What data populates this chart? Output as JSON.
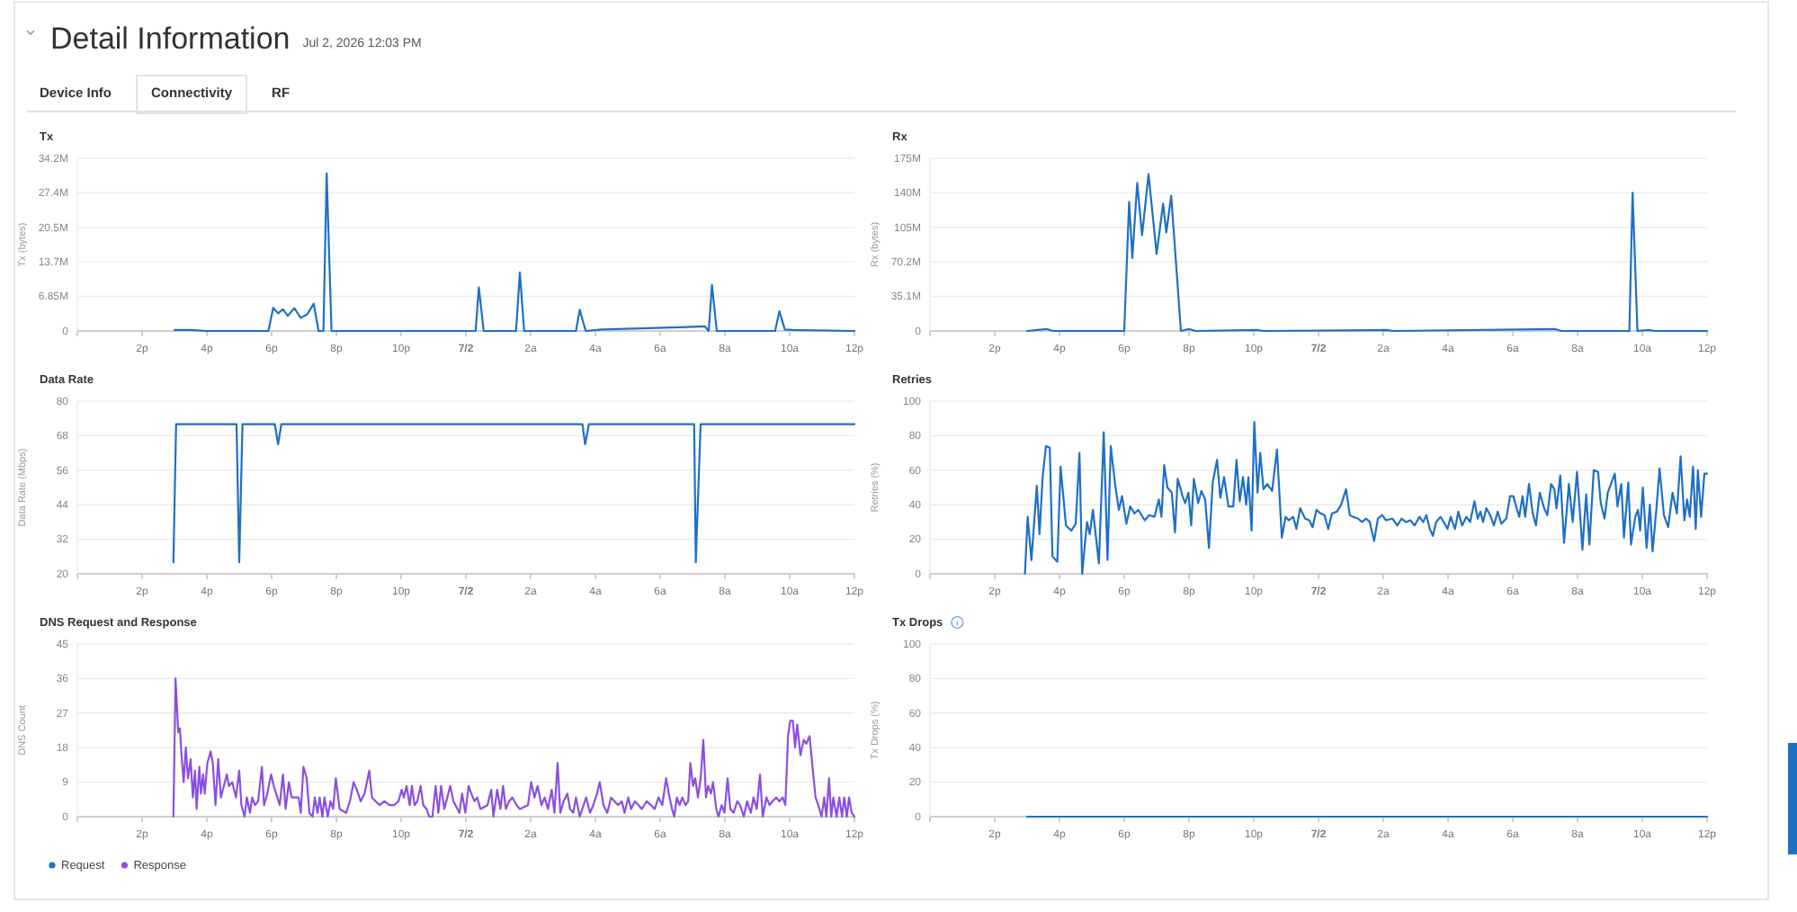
{
  "chart_data": [
    {
      "type": "other",
      "title": "Detail Information",
      "subtitle": "Jul 2, 2026 12:03 PM",
      "annotations": [
        "Device Info",
        "Connectivity",
        "RF"
      ]
    },
    {
      "type": "line",
      "title": "Tx",
      "ylabel": "Tx (bytes)",
      "grid": "y",
      "xlim": [
        "2026-07-01T12:00",
        "2026-07-02T12:00"
      ],
      "ylim": [
        0,
        34.2
      ],
      "xticks": [
        {
          "value": "2026-07-01T14:00",
          "label": "2p"
        },
        {
          "value": "2026-07-01T16:00",
          "label": "4p"
        },
        {
          "value": "2026-07-01T18:00",
          "label": "6p"
        },
        {
          "value": "2026-07-01T20:00",
          "label": "8p"
        },
        {
          "value": "2026-07-01T22:00",
          "label": "10p"
        },
        {
          "value": "2026-07-02T00:00",
          "label": "7/2"
        },
        {
          "value": "2026-07-02T02:00",
          "label": "2a"
        },
        {
          "value": "2026-07-02T04:00",
          "label": "4a"
        },
        {
          "value": "2026-07-02T06:00",
          "label": "6a"
        },
        {
          "value": "2026-07-02T08:00",
          "label": "8a"
        },
        {
          "value": "2026-07-02T10:00",
          "label": "10a"
        },
        {
          "value": "2026-07-02T12:00",
          "label": "12p"
        }
      ],
      "yticks": [
        0,
        {
          "value": 6.85,
          "label": "6.85M"
        },
        {
          "value": 13.7,
          "label": "13.7M"
        },
        {
          "value": 20.5,
          "label": "20.5M"
        },
        {
          "value": 27.4,
          "label": "27.4M"
        },
        {
          "value": 34.2,
          "label": "34.2M"
        }
      ],
      "series": [
        {
          "color": "#1f6fc5",
          "x": [
            "2026-07-01T15:00",
            "2026-07-01T15:30",
            "2026-07-01T16:00",
            "2026-07-01T17:54",
            "2026-07-01T18:03",
            "2026-07-01T18:12",
            "2026-07-01T18:21",
            "2026-07-01T18:30",
            "2026-07-01T18:42",
            "2026-07-01T18:54",
            "2026-07-01T19:06",
            "2026-07-01T19:18",
            "2026-07-01T19:27",
            "2026-07-01T19:36",
            "2026-07-01T19:42",
            "2026-07-01T19:51",
            "2026-07-02T00:18",
            "2026-07-02T00:24",
            "2026-07-02T00:33",
            "2026-07-02T01:33",
            "2026-07-02T01:40",
            "2026-07-02T01:48",
            "2026-07-02T03:24",
            "2026-07-02T03:31",
            "2026-07-02T03:42",
            "2026-07-02T04:11",
            "2026-07-02T07:23",
            "2026-07-02T07:30",
            "2026-07-02T07:36",
            "2026-07-02T07:45",
            "2026-07-02T09:33",
            "2026-07-02T09:41",
            "2026-07-02T09:51",
            "2026-07-02T10:06",
            "2026-07-02T12:00"
          ],
          "values": [
            0.2,
            0.2,
            0,
            0,
            4.6,
            3.5,
            4.3,
            3,
            4.5,
            2.6,
            3.3,
            5.4,
            0,
            0,
            31.2,
            0,
            0,
            8.6,
            0,
            0,
            11.6,
            0,
            0,
            4.2,
            0,
            0.3,
            0.9,
            0,
            9.1,
            0,
            0,
            3.9,
            0.3,
            0.2,
            0
          ]
        }
      ]
    },
    {
      "type": "line",
      "title": "Rx",
      "ylabel": "Rx (bytes)",
      "grid": "y",
      "xlim": [
        "2026-07-01T12:00",
        "2026-07-02T12:00"
      ],
      "ylim": [
        0,
        175
      ],
      "xticks": [
        {
          "value": "2026-07-01T14:00",
          "label": "2p"
        },
        {
          "value": "2026-07-01T16:00",
          "label": "4p"
        },
        {
          "value": "2026-07-01T18:00",
          "label": "6p"
        },
        {
          "value": "2026-07-01T20:00",
          "label": "8p"
        },
        {
          "value": "2026-07-01T22:00",
          "label": "10p"
        },
        {
          "value": "2026-07-02T00:00",
          "label": "7/2"
        },
        {
          "value": "2026-07-02T02:00",
          "label": "2a"
        },
        {
          "value": "2026-07-02T04:00",
          "label": "4a"
        },
        {
          "value": "2026-07-02T06:00",
          "label": "6a"
        },
        {
          "value": "2026-07-02T08:00",
          "label": "8a"
        },
        {
          "value": "2026-07-02T10:00",
          "label": "10a"
        },
        {
          "value": "2026-07-02T12:00",
          "label": "12p"
        }
      ],
      "yticks": [
        0,
        {
          "value": 35.1,
          "label": "35.1M"
        },
        {
          "value": 70.2,
          "label": "70.2M"
        },
        {
          "value": 105,
          "label": "105M"
        },
        {
          "value": 140,
          "label": "140M"
        },
        {
          "value": 175,
          "label": "175M"
        }
      ],
      "series": [
        {
          "color": "#1f6fc5",
          "x": [
            "2026-07-01T15:00",
            "2026-07-01T15:36",
            "2026-07-01T15:48",
            "2026-07-01T18:00",
            "2026-07-01T18:09",
            "2026-07-01T18:15",
            "2026-07-01T18:24",
            "2026-07-01T18:33",
            "2026-07-01T18:45",
            "2026-07-01T19:00",
            "2026-07-01T19:12",
            "2026-07-01T19:18",
            "2026-07-01T19:27",
            "2026-07-01T19:45",
            "2026-07-01T20:00",
            "2026-07-01T20:12",
            "2026-07-01T22:06",
            "2026-07-01T22:18",
            "2026-07-02T02:06",
            "2026-07-02T02:18",
            "2026-07-02T07:18",
            "2026-07-02T07:30",
            "2026-07-02T09:36",
            "2026-07-02T09:42",
            "2026-07-02T09:51",
            "2026-07-02T10:12",
            "2026-07-02T10:24",
            "2026-07-02T12:00"
          ],
          "values": [
            0,
            2,
            0,
            0,
            131,
            74,
            150,
            97,
            159,
            78,
            129,
            100,
            137,
            0,
            2,
            0,
            1,
            0,
            1,
            0,
            2,
            0,
            0,
            140,
            0,
            1,
            0,
            0
          ]
        }
      ]
    },
    {
      "type": "line",
      "title": "Data Rate",
      "ylabel": "Data Rate (Mbps)",
      "grid": "y",
      "xlim": [
        "2026-07-01T12:00",
        "2026-07-02T12:00"
      ],
      "ylim": [
        20,
        80
      ],
      "xticks": [
        {
          "value": "2026-07-01T14:00",
          "label": "2p"
        },
        {
          "value": "2026-07-01T16:00",
          "label": "4p"
        },
        {
          "value": "2026-07-01T18:00",
          "label": "6p"
        },
        {
          "value": "2026-07-01T20:00",
          "label": "8p"
        },
        {
          "value": "2026-07-01T22:00",
          "label": "10p"
        },
        {
          "value": "2026-07-02T00:00",
          "label": "7/2"
        },
        {
          "value": "2026-07-02T02:00",
          "label": "2a"
        },
        {
          "value": "2026-07-02T04:00",
          "label": "4a"
        },
        {
          "value": "2026-07-02T06:00",
          "label": "6a"
        },
        {
          "value": "2026-07-02T08:00",
          "label": "8a"
        },
        {
          "value": "2026-07-02T10:00",
          "label": "10a"
        },
        {
          "value": "2026-07-02T12:00",
          "label": "12p"
        }
      ],
      "yticks": [
        20,
        32,
        44,
        56,
        68,
        80
      ],
      "series": [
        {
          "color": "#1f6fc5",
          "x": [
            "2026-07-01T14:58",
            "2026-07-01T15:03",
            "2026-07-01T16:55",
            "2026-07-01T17:00",
            "2026-07-01T17:06",
            "2026-07-01T18:06",
            "2026-07-01T18:12",
            "2026-07-01T18:18",
            "2026-07-02T03:36",
            "2026-07-02T03:41",
            "2026-07-02T03:48",
            "2026-07-02T07:03",
            "2026-07-02T07:06",
            "2026-07-02T07:15",
            "2026-07-02T12:00"
          ],
          "values": [
            24,
            72,
            72,
            24,
            72,
            72,
            65,
            72,
            72,
            65,
            72,
            72,
            24,
            72,
            72
          ]
        }
      ]
    },
    {
      "type": "line",
      "title": "Retries",
      "ylabel": "Retries (%)",
      "grid": "y",
      "xlim": [
        "2026-07-01T12:00",
        "2026-07-02T12:00"
      ],
      "ylim": [
        0,
        100
      ],
      "xticks": [
        {
          "value": "2026-07-01T14:00",
          "label": "2p"
        },
        {
          "value": "2026-07-01T16:00",
          "label": "4p"
        },
        {
          "value": "2026-07-01T18:00",
          "label": "6p"
        },
        {
          "value": "2026-07-01T20:00",
          "label": "8p"
        },
        {
          "value": "2026-07-01T22:00",
          "label": "10p"
        },
        {
          "value": "2026-07-02T00:00",
          "label": "7/2"
        },
        {
          "value": "2026-07-02T02:00",
          "label": "2a"
        },
        {
          "value": "2026-07-02T04:00",
          "label": "4a"
        },
        {
          "value": "2026-07-02T06:00",
          "label": "6a"
        },
        {
          "value": "2026-07-02T08:00",
          "label": "8a"
        },
        {
          "value": "2026-07-02T10:00",
          "label": "10a"
        },
        {
          "value": "2026-07-02T12:00",
          "label": "12p"
        }
      ],
      "yticks": [
        0,
        20,
        40,
        60,
        80,
        100
      ],
      "series": [
        {
          "color": "#1f6fc5",
          "x": [
            "2026-07-01T14:56",
            "2026-07-01T15:01",
            "2026-07-01T15:08",
            "2026-07-01T15:18",
            "2026-07-01T15:23",
            "2026-07-01T15:29",
            "2026-07-01T15:35",
            "2026-07-01T15:42",
            "2026-07-01T15:47",
            "2026-07-01T15:56",
            "2026-07-01T16:02",
            "2026-07-01T16:12",
            "2026-07-01T16:22",
            "2026-07-01T16:30",
            "2026-07-01T16:37",
            "2026-07-01T16:42",
            "2026-07-01T16:51",
            "2026-07-01T16:56",
            "2026-07-01T17:02",
            "2026-07-01T17:13",
            "2026-07-01T17:22",
            "2026-07-01T17:29",
            "2026-07-01T17:35",
            "2026-07-01T17:43",
            "2026-07-01T17:50",
            "2026-07-01T17:56",
            "2026-07-01T18:04",
            "2026-07-01T18:11",
            "2026-07-01T18:19",
            "2026-07-01T18:26",
            "2026-07-01T18:38",
            "2026-07-01T18:46",
            "2026-07-01T18:56",
            "2026-07-01T19:04",
            "2026-07-01T19:09",
            "2026-07-01T19:14",
            "2026-07-01T19:20",
            "2026-07-01T19:28",
            "2026-07-01T19:34",
            "2026-07-01T19:39",
            "2026-07-01T19:48",
            "2026-07-01T19:53",
            "2026-07-01T19:59",
            "2026-07-01T20:04",
            "2026-07-01T20:09",
            "2026-07-01T20:17",
            "2026-07-01T20:23",
            "2026-07-01T20:30",
            "2026-07-01T20:37",
            "2026-07-01T20:44",
            "2026-07-01T20:52",
            "2026-07-01T20:58",
            "2026-07-01T21:05",
            "2026-07-01T21:13",
            "2026-07-01T21:22",
            "2026-07-01T21:28",
            "2026-07-01T21:34",
            "2026-07-01T21:40",
            "2026-07-01T21:46",
            "2026-07-01T21:50",
            "2026-07-01T21:56",
            "2026-07-01T22:01",
            "2026-07-01T22:07",
            "2026-07-01T22:12",
            "2026-07-01T22:18",
            "2026-07-01T22:25",
            "2026-07-01T22:34",
            "2026-07-01T22:43",
            "2026-07-01T22:52",
            "2026-07-01T22:59",
            "2026-07-01T23:05",
            "2026-07-01T23:13",
            "2026-07-01T23:19",
            "2026-07-01T23:26",
            "2026-07-01T23:35",
            "2026-07-01T23:43",
            "2026-07-01T23:49",
            "2026-07-01T23:56",
            "2026-07-02T00:04",
            "2026-07-02T00:11",
            "2026-07-02T00:18",
            "2026-07-02T00:25",
            "2026-07-02T00:34",
            "2026-07-02T00:42",
            "2026-07-02T00:48",
            "2026-07-02T00:51",
            "2026-07-02T00:58",
            "2026-07-02T01:04",
            "2026-07-02T01:13",
            "2026-07-02T01:21",
            "2026-07-02T01:28",
            "2026-07-02T01:35",
            "2026-07-02T01:43",
            "2026-07-02T01:50",
            "2026-07-02T01:58",
            "2026-07-02T02:05",
            "2026-07-02T02:17",
            "2026-07-02T02:26",
            "2026-07-02T02:34",
            "2026-07-02T02:42",
            "2026-07-02T02:50",
            "2026-07-02T02:58",
            "2026-07-02T03:07",
            "2026-07-02T03:14",
            "2026-07-02T03:20",
            "2026-07-02T03:26",
            "2026-07-02T03:32",
            "2026-07-02T03:38",
            "2026-07-02T03:46",
            "2026-07-02T03:52",
            "2026-07-02T03:59",
            "2026-07-02T04:05",
            "2026-07-02T04:13",
            "2026-07-02T04:19",
            "2026-07-02T04:26",
            "2026-07-02T04:34",
            "2026-07-02T04:41",
            "2026-07-02T04:49",
            "2026-07-02T04:55",
            "2026-07-02T05:00",
            "2026-07-02T05:05",
            "2026-07-02T05:11",
            "2026-07-02T05:18",
            "2026-07-02T05:25",
            "2026-07-02T05:32",
            "2026-07-02T05:39",
            "2026-07-02T05:48",
            "2026-07-02T05:55",
            "2026-07-02T06:01",
            "2026-07-02T06:07",
            "2026-07-02T06:12",
            "2026-07-02T06:18",
            "2026-07-02T06:23",
            "2026-07-02T06:30",
            "2026-07-02T06:37",
            "2026-07-02T06:43",
            "2026-07-02T06:50",
            "2026-07-02T06:58",
            "2026-07-02T07:04",
            "2026-07-02T07:11",
            "2026-07-02T07:17",
            "2026-07-02T07:21",
            "2026-07-02T07:28",
            "2026-07-02T07:35",
            "2026-07-02T07:44",
            "2026-07-02T07:51",
            "2026-07-02T07:59",
            "2026-07-02T08:05",
            "2026-07-02T08:09",
            "2026-07-02T08:16",
            "2026-07-02T08:22",
            "2026-07-02T08:30",
            "2026-07-02T08:38",
            "2026-07-02T08:43",
            "2026-07-02T08:50",
            "2026-07-02T08:56",
            "2026-07-02T09:09",
            "2026-07-02T09:14",
            "2026-07-02T09:21",
            "2026-07-02T09:26",
            "2026-07-02T09:34",
            "2026-07-02T09:39",
            "2026-07-02T09:47",
            "2026-07-02T09:52",
            "2026-07-02T09:56",
            "2026-07-02T10:01",
            "2026-07-02T10:08",
            "2026-07-02T10:14",
            "2026-07-02T10:19",
            "2026-07-02T10:26",
            "2026-07-02T10:32",
            "2026-07-02T10:40",
            "2026-07-02T10:48",
            "2026-07-02T10:56",
            "2026-07-02T11:04",
            "2026-07-02T11:11",
            "2026-07-02T11:18",
            "2026-07-02T11:23",
            "2026-07-02T11:28",
            "2026-07-02T11:34",
            "2026-07-02T11:39",
            "2026-07-02T11:43",
            "2026-07-02T11:49",
            "2026-07-02T11:55",
            "2026-07-02T12:00"
          ],
          "values": [
            0,
            33,
            8,
            51,
            23,
            57,
            74,
            73,
            10,
            7,
            62,
            28,
            25,
            29,
            70,
            0,
            30,
            23,
            37,
            6,
            82,
            8,
            74,
            52,
            37,
            45,
            29,
            39,
            35,
            37,
            31,
            34,
            33,
            43,
            33,
            63,
            50,
            47,
            24,
            55,
            45,
            41,
            47,
            28,
            55,
            41,
            48,
            43,
            15,
            53,
            66,
            44,
            56,
            39,
            39,
            66,
            42,
            56,
            40,
            56,
            25,
            88,
            47,
            70,
            49,
            52,
            48,
            72,
            21,
            33,
            31,
            33,
            26,
            38,
            32,
            31,
            27,
            37,
            35,
            34,
            26,
            35,
            36,
            40,
            46,
            49,
            34,
            33,
            32,
            30,
            32,
            30,
            19,
            32,
            34,
            31,
            32,
            28,
            32,
            30,
            31,
            28,
            33,
            30,
            34,
            26,
            22,
            30,
            33,
            30,
            26,
            33,
            26,
            36,
            28,
            33,
            30,
            42,
            32,
            36,
            30,
            38,
            34,
            28,
            36,
            29,
            32,
            45,
            45,
            38,
            33,
            45,
            33,
            52,
            35,
            28,
            47,
            38,
            34,
            52,
            49,
            38,
            57,
            18,
            52,
            30,
            59,
            33,
            14,
            46,
            17,
            60,
            59,
            41,
            32,
            47,
            58,
            39,
            52,
            21,
            53,
            17,
            33,
            37,
            25,
            50,
            15,
            40,
            13,
            37,
            61,
            34,
            27,
            47,
            35,
            68,
            31,
            43,
            33,
            62,
            26,
            60,
            33,
            58,
            58
          ]
        }
      ]
    },
    {
      "type": "line",
      "title": "DNS Request and Response",
      "ylabel": "DNS Count",
      "grid": "y",
      "legend": "bottom",
      "xlim": [
        "2026-07-01T12:00",
        "2026-07-02T12:00"
      ],
      "ylim": [
        0,
        45
      ],
      "xticks": [
        {
          "value": "2026-07-01T14:00",
          "label": "2p"
        },
        {
          "value": "2026-07-01T16:00",
          "label": "4p"
        },
        {
          "value": "2026-07-01T18:00",
          "label": "6p"
        },
        {
          "value": "2026-07-01T20:00",
          "label": "8p"
        },
        {
          "value": "2026-07-01T22:00",
          "label": "10p"
        },
        {
          "value": "2026-07-02T00:00",
          "label": "7/2"
        },
        {
          "value": "2026-07-02T02:00",
          "label": "2a"
        },
        {
          "value": "2026-07-02T04:00",
          "label": "4a"
        },
        {
          "value": "2026-07-02T06:00",
          "label": "6a"
        },
        {
          "value": "2026-07-02T08:00",
          "label": "8a"
        },
        {
          "value": "2026-07-02T10:00",
          "label": "10a"
        },
        {
          "value": "2026-07-02T12:00",
          "label": "12p"
        }
      ],
      "yticks": [
        0,
        9,
        18,
        27,
        36,
        45
      ],
      "series": [
        {
          "name": "Request",
          "color": "#1f6fc5"
        },
        {
          "name": "Response",
          "color": "#8b4fe0",
          "x": [
            "2026-07-01T14:58",
            "2026-07-01T15:02",
            "2026-07-01T15:07",
            "2026-07-01T15:10",
            "2026-07-01T15:13",
            "2026-07-01T15:17",
            "2026-07-01T15:21",
            "2026-07-01T15:25",
            "2026-07-01T15:30",
            "2026-07-01T15:34",
            "2026-07-01T15:38",
            "2026-07-01T15:41",
            "2026-07-01T15:46",
            "2026-07-01T15:49",
            "2026-07-01T15:53",
            "2026-07-01T15:56",
            "2026-07-01T16:01",
            "2026-07-01T16:07",
            "2026-07-01T16:11",
            "2026-07-01T16:16",
            "2026-07-01T16:21",
            "2026-07-01T16:26",
            "2026-07-01T16:37",
            "2026-07-01T16:41",
            "2026-07-01T16:47",
            "2026-07-01T16:54",
            "2026-07-01T17:00",
            "2026-07-01T17:04",
            "2026-07-01T17:10",
            "2026-07-01T17:14",
            "2026-07-01T17:20",
            "2026-07-01T17:24",
            "2026-07-01T17:29",
            "2026-07-01T17:35",
            "2026-07-01T17:42",
            "2026-07-01T17:46",
            "2026-07-01T17:52",
            "2026-07-01T17:59",
            "2026-07-01T18:04",
            "2026-07-01T18:15",
            "2026-07-01T18:21",
            "2026-07-01T18:26",
            "2026-07-01T18:32",
            "2026-07-01T18:37",
            "2026-07-01T18:50",
            "2026-07-01T18:54",
            "2026-07-01T18:59",
            "2026-07-01T19:05",
            "2026-07-01T19:10",
            "2026-07-01T19:16",
            "2026-07-01T19:20",
            "2026-07-01T19:25",
            "2026-07-01T19:29",
            "2026-07-01T19:34",
            "2026-07-01T19:38",
            "2026-07-01T19:44",
            "2026-07-01T19:49",
            "2026-07-01T19:54",
            "2026-07-01T19:59",
            "2026-07-01T20:06",
            "2026-07-01T20:18",
            "2026-07-01T20:25",
            "2026-07-01T20:32",
            "2026-07-01T20:38",
            "2026-07-01T20:45",
            "2026-07-01T20:52",
            "2026-07-01T21:01",
            "2026-07-01T21:06",
            "2026-07-01T21:13",
            "2026-07-01T21:20",
            "2026-07-01T21:29",
            "2026-07-01T21:38",
            "2026-07-01T21:47",
            "2026-07-01T21:55",
            "2026-07-01T22:01",
            "2026-07-01T22:05",
            "2026-07-01T22:10",
            "2026-07-01T22:16",
            "2026-07-01T22:20",
            "2026-07-01T22:25",
            "2026-07-01T22:30",
            "2026-07-01T22:36",
            "2026-07-01T22:41",
            "2026-07-01T22:47",
            "2026-07-01T22:52",
            "2026-07-01T22:58",
            "2026-07-01T23:04",
            "2026-07-01T23:09",
            "2026-07-01T23:14",
            "2026-07-01T23:20",
            "2026-07-01T23:31",
            "2026-07-01T23:37",
            "2026-07-01T23:48",
            "2026-07-01T23:53",
            "2026-07-01T23:59",
            "2026-07-02T00:05",
            "2026-07-02T00:10",
            "2026-07-02T00:16",
            "2026-07-02T00:21",
            "2026-07-02T00:27",
            "2026-07-02T00:40",
            "2026-07-02T00:47",
            "2026-07-02T00:51",
            "2026-07-02T00:58",
            "2026-07-02T01:04",
            "2026-07-02T01:09",
            "2026-07-02T01:14",
            "2026-07-02T01:20",
            "2026-07-02T01:26",
            "2026-07-02T01:34",
            "2026-07-02T01:40",
            "2026-07-02T01:55",
            "2026-07-02T02:01",
            "2026-07-02T02:07",
            "2026-07-02T02:13",
            "2026-07-02T02:20",
            "2026-07-02T02:26",
            "2026-07-02T02:32",
            "2026-07-02T02:39",
            "2026-07-02T02:44",
            "2026-07-02T02:50",
            "2026-07-02T02:55",
            "2026-07-02T03:01",
            "2026-07-02T03:08",
            "2026-07-02T03:13",
            "2026-07-02T03:19",
            "2026-07-02T03:24",
            "2026-07-02T03:31",
            "2026-07-02T03:38",
            "2026-07-02T03:43",
            "2026-07-02T03:50",
            "2026-07-02T03:56",
            "2026-07-02T04:03",
            "2026-07-02T04:08",
            "2026-07-02T04:15",
            "2026-07-02T04:22",
            "2026-07-02T04:29",
            "2026-07-02T04:42",
            "2026-07-02T04:49",
            "2026-07-02T04:54",
            "2026-07-02T05:01",
            "2026-07-02T05:06",
            "2026-07-02T05:13",
            "2026-07-02T05:20",
            "2026-07-02T05:26",
            "2026-07-02T05:35",
            "2026-07-02T05:43",
            "2026-07-02T05:50",
            "2026-07-02T05:57",
            "2026-07-02T06:04",
            "2026-07-02T06:11",
            "2026-07-02T06:16",
            "2026-07-02T06:22",
            "2026-07-02T06:26",
            "2026-07-02T06:31",
            "2026-07-02T06:36",
            "2026-07-02T06:41",
            "2026-07-02T06:47",
            "2026-07-02T06:52",
            "2026-07-02T06:56",
            "2026-07-02T07:01",
            "2026-07-02T07:05",
            "2026-07-02T07:10",
            "2026-07-02T07:15",
            "2026-07-02T07:20",
            "2026-07-02T07:25",
            "2026-07-02T07:29",
            "2026-07-02T07:34",
            "2026-07-02T07:38",
            "2026-07-02T07:44",
            "2026-07-02T07:48",
            "2026-07-02T07:54",
            "2026-07-02T07:59",
            "2026-07-02T08:05",
            "2026-07-02T08:10",
            "2026-07-02T08:16",
            "2026-07-02T08:23",
            "2026-07-02T08:28",
            "2026-07-02T08:35",
            "2026-07-02T08:41",
            "2026-07-02T08:48",
            "2026-07-02T08:53",
            "2026-07-02T08:59",
            "2026-07-02T09:05",
            "2026-07-02T09:10",
            "2026-07-02T09:17",
            "2026-07-02T09:23",
            "2026-07-02T09:28",
            "2026-07-02T09:35",
            "2026-07-02T09:41",
            "2026-07-02T09:47",
            "2026-07-02T09:52",
            "2026-07-02T09:57",
            "2026-07-02T10:01",
            "2026-07-02T10:06",
            "2026-07-02T10:10",
            "2026-07-02T10:14",
            "2026-07-02T10:20",
            "2026-07-02T10:26",
            "2026-07-02T10:31",
            "2026-07-02T10:37",
            "2026-07-02T10:43",
            "2026-07-02T10:48",
            "2026-07-02T10:53",
            "2026-07-02T10:59",
            "2026-07-02T11:04",
            "2026-07-02T11:08",
            "2026-07-02T11:13",
            "2026-07-02T11:17",
            "2026-07-02T11:21",
            "2026-07-02T11:27",
            "2026-07-02T11:32",
            "2026-07-02T11:37",
            "2026-07-02T11:41",
            "2026-07-02T11:46",
            "2026-07-02T11:50",
            "2026-07-02T11:55",
            "2026-07-02T12:00"
          ],
          "values": [
            0,
            36,
            22,
            23,
            16,
            9,
            18,
            10,
            15,
            5,
            12,
            2,
            13,
            6,
            11,
            6,
            14,
            17,
            14,
            3,
            15,
            5,
            11,
            8,
            9,
            5,
            12,
            3,
            0,
            5,
            1,
            5,
            3,
            4,
            13,
            3,
            6,
            11,
            8,
            3,
            11,
            2,
            9,
            5,
            5,
            1,
            13,
            10,
            1,
            0,
            5,
            1,
            5,
            0,
            5,
            0,
            4,
            2,
            10,
            2,
            1,
            4,
            9,
            7,
            4,
            6,
            12,
            5,
            4,
            3,
            4,
            3,
            3,
            4,
            7,
            5,
            8,
            3,
            8,
            3,
            4,
            8,
            3,
            2,
            0,
            0,
            8,
            1,
            8,
            2,
            8,
            4,
            1,
            6,
            1,
            8,
            6,
            4,
            5,
            2,
            3,
            7,
            0,
            7,
            2,
            8,
            2,
            4,
            5,
            3,
            2,
            3,
            9,
            5,
            8,
            3,
            5,
            2,
            7,
            1,
            14,
            1,
            4,
            6,
            2,
            1,
            5,
            0,
            3,
            5,
            1,
            3,
            6,
            9,
            3,
            1,
            5,
            3,
            4,
            1,
            5,
            2,
            4,
            3,
            2,
            4,
            3,
            2,
            5,
            3,
            10,
            6,
            2,
            0,
            5,
            3,
            5,
            3,
            4,
            14,
            8,
            10,
            5,
            10,
            20,
            5,
            8,
            6,
            9,
            2,
            0,
            3,
            1,
            10,
            2,
            1,
            4,
            3,
            0,
            4,
            1,
            5,
            2,
            11,
            0,
            5,
            3,
            4,
            5,
            4,
            5,
            3,
            21,
            25,
            25,
            18,
            24,
            16,
            20,
            19,
            21,
            12,
            5,
            3,
            0,
            5,
            0,
            10,
            0,
            5,
            0,
            5,
            0,
            5,
            0,
            5,
            1,
            0
          ]
        }
      ]
    },
    {
      "type": "line",
      "title": "Tx Drops",
      "ylabel": "Tx Drops (%)",
      "grid": "y",
      "xlim": [
        "2026-07-01T12:00",
        "2026-07-02T12:00"
      ],
      "ylim": [
        0,
        100
      ],
      "xticks": [
        {
          "value": "2026-07-01T14:00",
          "label": "2p"
        },
        {
          "value": "2026-07-01T16:00",
          "label": "4p"
        },
        {
          "value": "2026-07-01T18:00",
          "label": "6p"
        },
        {
          "value": "2026-07-01T20:00",
          "label": "8p"
        },
        {
          "value": "2026-07-01T22:00",
          "label": "10p"
        },
        {
          "value": "2026-07-02T00:00",
          "label": "7/2"
        },
        {
          "value": "2026-07-02T02:00",
          "label": "2a"
        },
        {
          "value": "2026-07-02T04:00",
          "label": "4a"
        },
        {
          "value": "2026-07-02T06:00",
          "label": "6a"
        },
        {
          "value": "2026-07-02T08:00",
          "label": "8a"
        },
        {
          "value": "2026-07-02T10:00",
          "label": "10a"
        },
        {
          "value": "2026-07-02T12:00",
          "label": "12p"
        }
      ],
      "yticks": [
        0,
        20,
        40,
        60,
        80,
        100
      ],
      "series": [
        {
          "color": "#1f6fc5",
          "x": [
            "2026-07-01T15:00",
            "2026-07-02T12:00"
          ],
          "values": [
            0,
            0
          ]
        }
      ]
    }
  ]
}
